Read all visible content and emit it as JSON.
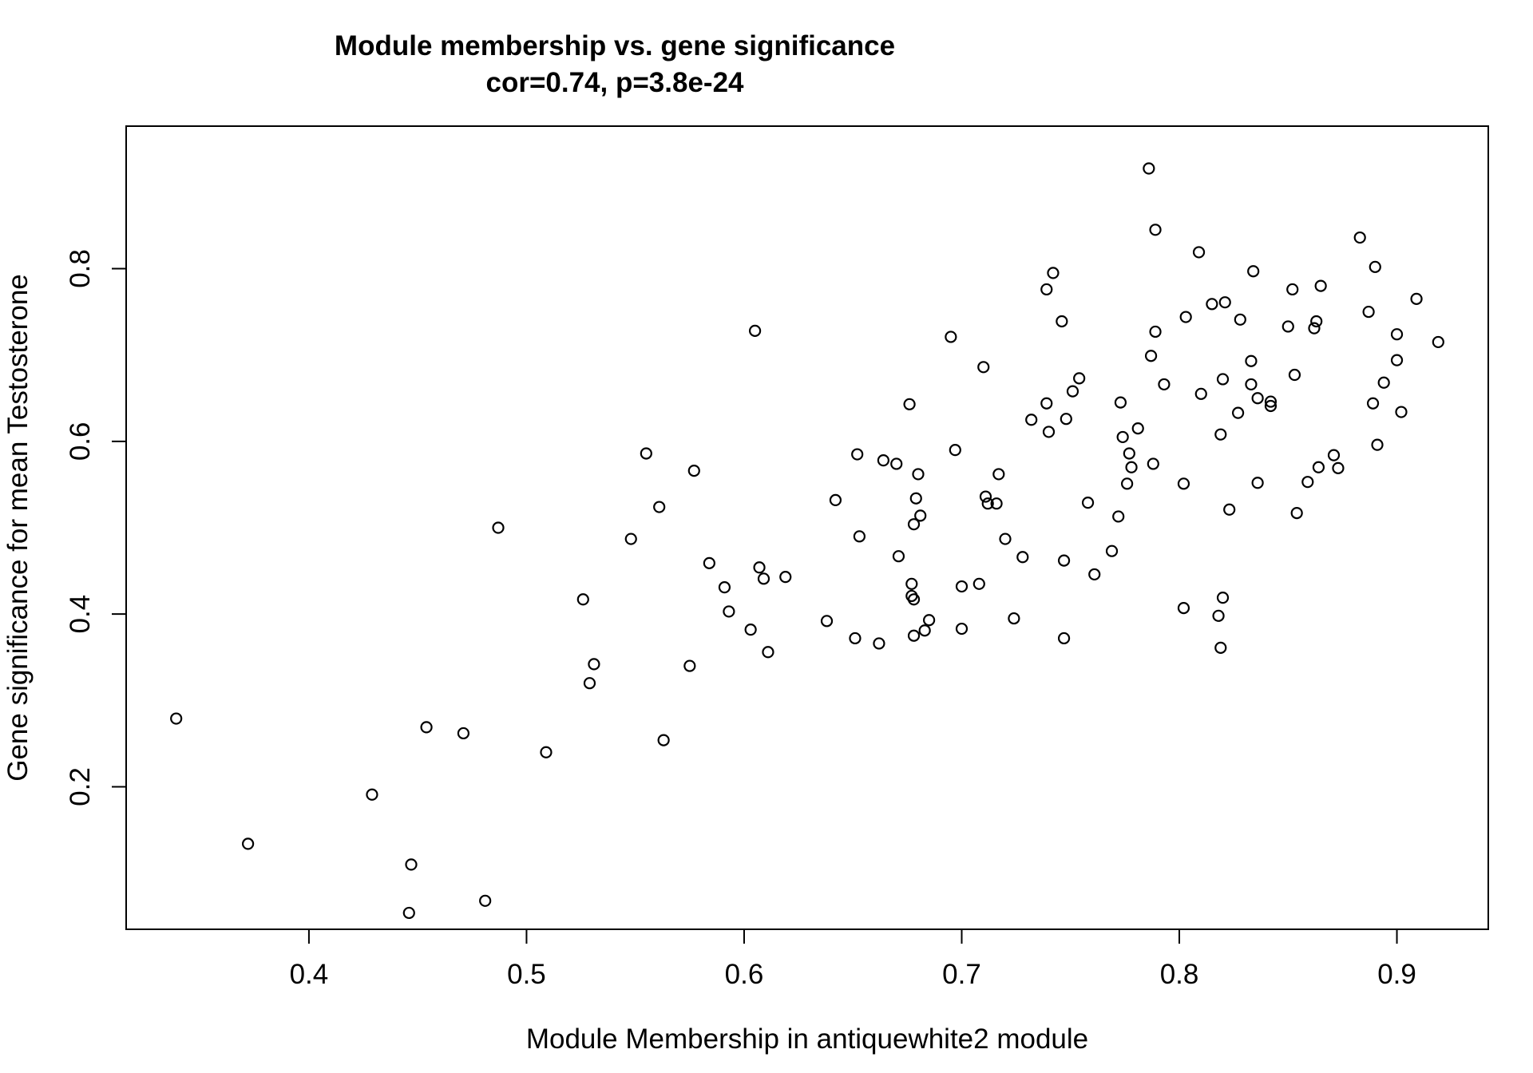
{
  "chart_data": {
    "type": "scatter",
    "title": "Module membership vs. gene significance",
    "subtitle": "cor=0.74, p=3.8e-24",
    "xlabel": "Module Membership in antiquewhite2 module",
    "ylabel": "Gene significance for mean Testosterone",
    "xlim": [
      0.316,
      0.942
    ],
    "ylim": [
      0.035,
      0.965
    ],
    "xticks": [
      0.4,
      0.5,
      0.6,
      0.7,
      0.8,
      0.9
    ],
    "yticks": [
      0.2,
      0.4,
      0.6,
      0.8
    ],
    "xtick_labels": [
      "0.4",
      "0.5",
      "0.6",
      "0.7",
      "0.8",
      "0.9"
    ],
    "ytick_labels": [
      "0.2",
      "0.4",
      "0.6",
      "0.8"
    ],
    "grid": false,
    "marker": "open-circle",
    "points": [
      [
        0.339,
        0.279
      ],
      [
        0.372,
        0.134
      ],
      [
        0.429,
        0.191
      ],
      [
        0.446,
        0.054
      ],
      [
        0.447,
        0.11
      ],
      [
        0.454,
        0.269
      ],
      [
        0.471,
        0.262
      ],
      [
        0.481,
        0.068
      ],
      [
        0.487,
        0.5
      ],
      [
        0.509,
        0.24
      ],
      [
        0.526,
        0.417
      ],
      [
        0.529,
        0.32
      ],
      [
        0.531,
        0.342
      ],
      [
        0.548,
        0.487
      ],
      [
        0.555,
        0.586
      ],
      [
        0.561,
        0.524
      ],
      [
        0.563,
        0.254
      ],
      [
        0.575,
        0.34
      ],
      [
        0.577,
        0.566
      ],
      [
        0.584,
        0.459
      ],
      [
        0.591,
        0.431
      ],
      [
        0.593,
        0.403
      ],
      [
        0.603,
        0.382
      ],
      [
        0.605,
        0.728
      ],
      [
        0.607,
        0.454
      ],
      [
        0.609,
        0.441
      ],
      [
        0.611,
        0.356
      ],
      [
        0.619,
        0.443
      ],
      [
        0.638,
        0.392
      ],
      [
        0.642,
        0.532
      ],
      [
        0.651,
        0.372
      ],
      [
        0.652,
        0.585
      ],
      [
        0.653,
        0.49
      ],
      [
        0.662,
        0.366
      ],
      [
        0.664,
        0.578
      ],
      [
        0.67,
        0.574
      ],
      [
        0.671,
        0.467
      ],
      [
        0.676,
        0.643
      ],
      [
        0.677,
        0.421
      ],
      [
        0.677,
        0.435
      ],
      [
        0.678,
        0.417
      ],
      [
        0.678,
        0.504
      ],
      [
        0.678,
        0.375
      ],
      [
        0.679,
        0.534
      ],
      [
        0.68,
        0.562
      ],
      [
        0.681,
        0.514
      ],
      [
        0.683,
        0.381
      ],
      [
        0.685,
        0.393
      ],
      [
        0.695,
        0.721
      ],
      [
        0.697,
        0.59
      ],
      [
        0.7,
        0.432
      ],
      [
        0.7,
        0.383
      ],
      [
        0.708,
        0.435
      ],
      [
        0.71,
        0.686
      ],
      [
        0.711,
        0.536
      ],
      [
        0.712,
        0.528
      ],
      [
        0.716,
        0.528
      ],
      [
        0.717,
        0.562
      ],
      [
        0.72,
        0.487
      ],
      [
        0.724,
        0.395
      ],
      [
        0.728,
        0.466
      ],
      [
        0.732,
        0.625
      ],
      [
        0.739,
        0.776
      ],
      [
        0.739,
        0.644
      ],
      [
        0.74,
        0.611
      ],
      [
        0.742,
        0.795
      ],
      [
        0.746,
        0.739
      ],
      [
        0.747,
        0.462
      ],
      [
        0.747,
        0.372
      ],
      [
        0.748,
        0.626
      ],
      [
        0.751,
        0.658
      ],
      [
        0.754,
        0.673
      ],
      [
        0.758,
        0.529
      ],
      [
        0.761,
        0.446
      ],
      [
        0.769,
        0.473
      ],
      [
        0.772,
        0.513
      ],
      [
        0.773,
        0.645
      ],
      [
        0.774,
        0.605
      ],
      [
        0.776,
        0.551
      ],
      [
        0.777,
        0.586
      ],
      [
        0.778,
        0.57
      ],
      [
        0.781,
        0.615
      ],
      [
        0.786,
        0.916
      ],
      [
        0.787,
        0.699
      ],
      [
        0.788,
        0.574
      ],
      [
        0.789,
        0.845
      ],
      [
        0.789,
        0.727
      ],
      [
        0.793,
        0.666
      ],
      [
        0.802,
        0.407
      ],
      [
        0.802,
        0.551
      ],
      [
        0.803,
        0.744
      ],
      [
        0.809,
        0.819
      ],
      [
        0.81,
        0.655
      ],
      [
        0.815,
        0.759
      ],
      [
        0.818,
        0.398
      ],
      [
        0.819,
        0.608
      ],
      [
        0.819,
        0.361
      ],
      [
        0.82,
        0.672
      ],
      [
        0.82,
        0.419
      ],
      [
        0.821,
        0.761
      ],
      [
        0.823,
        0.521
      ],
      [
        0.827,
        0.633
      ],
      [
        0.828,
        0.741
      ],
      [
        0.833,
        0.693
      ],
      [
        0.833,
        0.666
      ],
      [
        0.834,
        0.797
      ],
      [
        0.836,
        0.65
      ],
      [
        0.836,
        0.552
      ],
      [
        0.842,
        0.646
      ],
      [
        0.842,
        0.641
      ],
      [
        0.85,
        0.733
      ],
      [
        0.852,
        0.776
      ],
      [
        0.853,
        0.677
      ],
      [
        0.854,
        0.517
      ],
      [
        0.859,
        0.553
      ],
      [
        0.862,
        0.731
      ],
      [
        0.863,
        0.739
      ],
      [
        0.864,
        0.57
      ],
      [
        0.865,
        0.78
      ],
      [
        0.871,
        0.584
      ],
      [
        0.873,
        0.569
      ],
      [
        0.883,
        0.836
      ],
      [
        0.887,
        0.75
      ],
      [
        0.889,
        0.644
      ],
      [
        0.89,
        0.802
      ],
      [
        0.891,
        0.596
      ],
      [
        0.894,
        0.668
      ],
      [
        0.9,
        0.724
      ],
      [
        0.9,
        0.694
      ],
      [
        0.902,
        0.634
      ],
      [
        0.909,
        0.765
      ],
      [
        0.919,
        0.715
      ]
    ]
  }
}
